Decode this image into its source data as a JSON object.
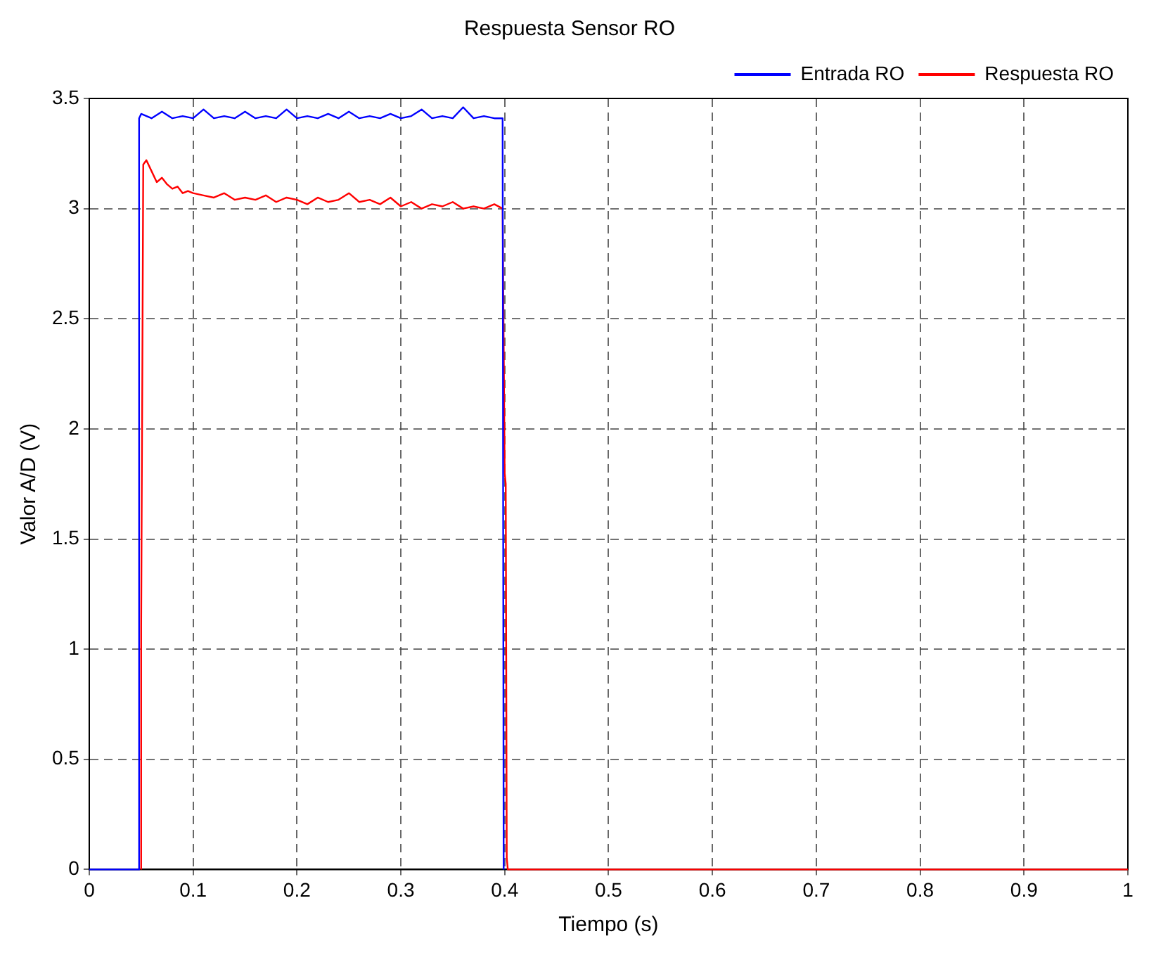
{
  "chart_data": {
    "type": "line",
    "title": "Respuesta Sensor RO",
    "xlabel": "Tiempo (s)",
    "ylabel": "Valor A/D (V)",
    "xlim": [
      0,
      1
    ],
    "xticks": [
      0,
      0.1,
      0.2,
      0.3,
      0.4,
      0.5,
      0.6,
      0.7,
      0.8,
      0.9,
      1
    ],
    "ylim": [
      0,
      3.5
    ],
    "yticks": [
      0,
      0.5,
      1,
      1.5,
      2,
      2.5,
      3,
      3.5
    ],
    "grid": true,
    "legend": "top right",
    "marker": "none",
    "line_style": "solid",
    "series": [
      {
        "name": "Entrada RO",
        "color": "#0000ff",
        "x": [
          0,
          0.048,
          0.048,
          0.05,
          0.06,
          0.07,
          0.08,
          0.09,
          0.1,
          0.11,
          0.12,
          0.13,
          0.14,
          0.15,
          0.16,
          0.17,
          0.18,
          0.19,
          0.2,
          0.21,
          0.22,
          0.23,
          0.24,
          0.25,
          0.26,
          0.27,
          0.28,
          0.29,
          0.3,
          0.31,
          0.32,
          0.33,
          0.34,
          0.35,
          0.36,
          0.37,
          0.38,
          0.39,
          0.398,
          0.399
        ],
        "values": [
          0,
          0,
          3.41,
          3.43,
          3.41,
          3.44,
          3.41,
          3.42,
          3.41,
          3.45,
          3.41,
          3.42,
          3.41,
          3.44,
          3.41,
          3.42,
          3.41,
          3.45,
          3.41,
          3.42,
          3.41,
          3.43,
          3.41,
          3.44,
          3.41,
          3.42,
          3.41,
          3.43,
          3.41,
          3.42,
          3.45,
          3.41,
          3.42,
          3.41,
          3.46,
          3.41,
          3.42,
          3.41,
          3.41,
          0
        ]
      },
      {
        "name": "Respuesta RO",
        "color": "#ff0000",
        "x": [
          0.05,
          0.05,
          0.052,
          0.055,
          0.06,
          0.065,
          0.07,
          0.075,
          0.08,
          0.085,
          0.09,
          0.095,
          0.1,
          0.11,
          0.12,
          0.13,
          0.14,
          0.15,
          0.16,
          0.17,
          0.18,
          0.19,
          0.2,
          0.21,
          0.22,
          0.23,
          0.24,
          0.25,
          0.26,
          0.27,
          0.28,
          0.29,
          0.3,
          0.31,
          0.32,
          0.33,
          0.34,
          0.35,
          0.36,
          0.37,
          0.38,
          0.39,
          0.398,
          0.4,
          0.401,
          0.402,
          0.403,
          1
        ],
        "values": [
          0,
          1.1,
          3.2,
          3.22,
          3.17,
          3.12,
          3.14,
          3.11,
          3.09,
          3.1,
          3.07,
          3.08,
          3.07,
          3.06,
          3.05,
          3.07,
          3.04,
          3.05,
          3.04,
          3.06,
          3.03,
          3.05,
          3.04,
          3.02,
          3.05,
          3.03,
          3.04,
          3.07,
          3.03,
          3.04,
          3.02,
          3.05,
          3.01,
          3.03,
          3,
          3.02,
          3.01,
          3.03,
          3,
          3.01,
          3,
          3.02,
          3,
          1.8,
          1.75,
          0.05,
          0,
          0
        ]
      }
    ]
  }
}
